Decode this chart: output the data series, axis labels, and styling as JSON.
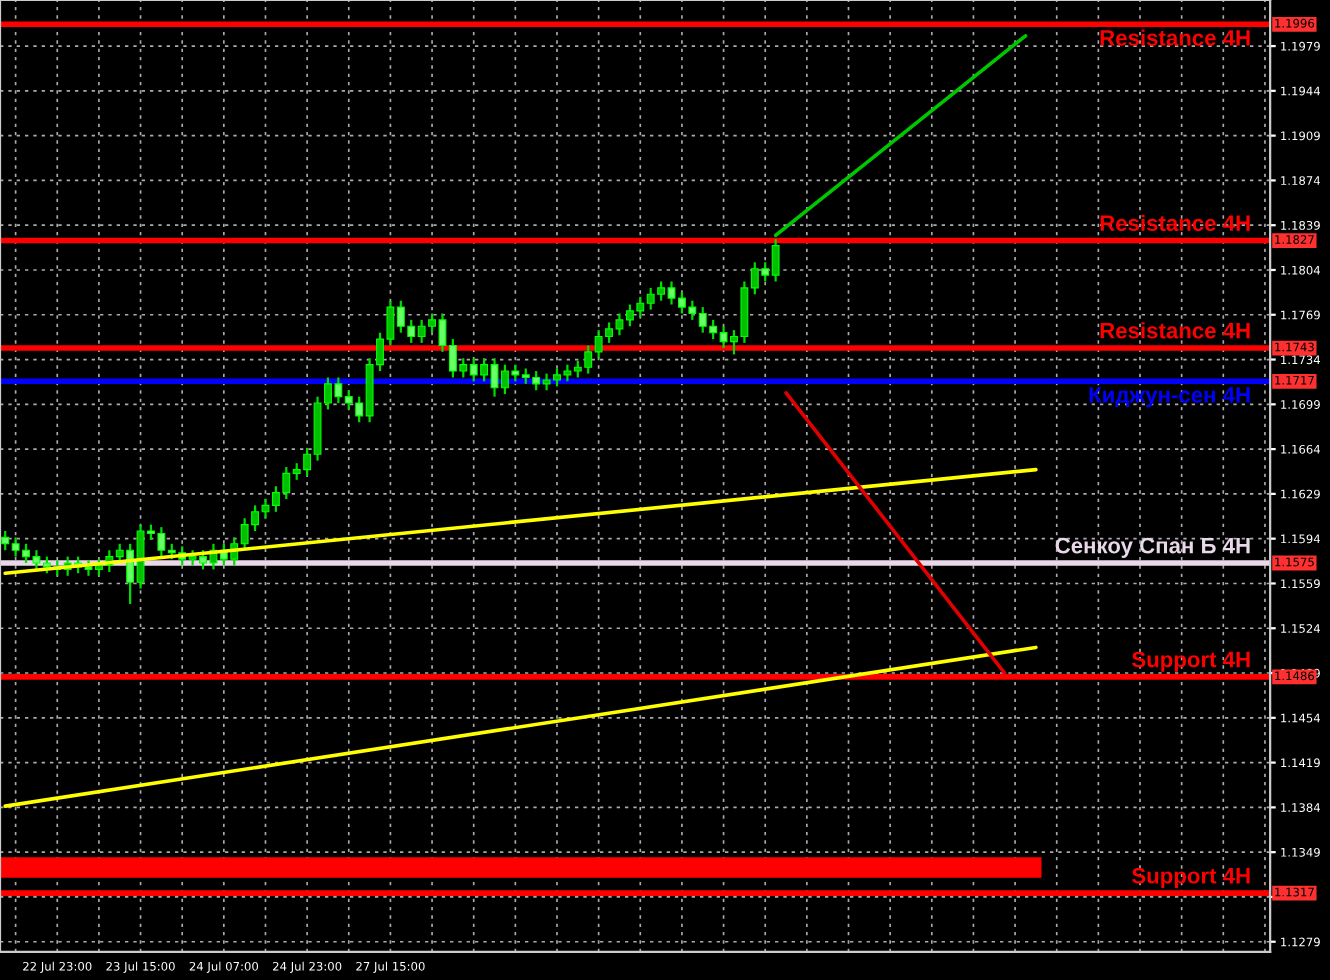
{
  "chart_data": {
    "type": "candlestick",
    "categories": [
      null,
      null,
      null,
      null,
      null,
      "22 Jul 23:00",
      null,
      null,
      null,
      null,
      null,
      null,
      null,
      "23 Jul 15:00",
      null,
      null,
      null,
      null,
      null,
      null,
      null,
      "24 Jul 07:00",
      null,
      null,
      null,
      null,
      null,
      null,
      null,
      "24 Jul 23:00",
      null,
      null,
      null,
      null,
      null,
      null,
      null,
      "27 Jul 15:00",
      null,
      null,
      null,
      null,
      null,
      null,
      null,
      null,
      null,
      null,
      null,
      null,
      null,
      null,
      null,
      null,
      null,
      null,
      null,
      null,
      null,
      null,
      null,
      null,
      null,
      null,
      null,
      null,
      null,
      null,
      null,
      null,
      null,
      null,
      null,
      null,
      null,
      null,
      null,
      null,
      null,
      null,
      null,
      null,
      null,
      null,
      null,
      null,
      null,
      null,
      null,
      null,
      null,
      null,
      null,
      null,
      null,
      null,
      null,
      null,
      null,
      null,
      null,
      null,
      null,
      null,
      null,
      null,
      null,
      null,
      null,
      null,
      null,
      null,
      null,
      null,
      null,
      null,
      null,
      null,
      null,
      null,
      null,
      null
    ],
    "ohlc": [
      [
        1.1595,
        1.16,
        1.1585,
        1.159
      ],
      [
        1.159,
        1.1595,
        1.158,
        1.1585
      ],
      [
        1.1585,
        1.159,
        1.1575,
        1.158
      ],
      [
        1.158,
        1.1585,
        1.157,
        1.1575
      ],
      [
        1.1575,
        1.158,
        1.1567,
        1.1572
      ],
      [
        1.1572,
        1.1577,
        1.1565,
        1.157
      ],
      [
        1.157,
        1.158,
        1.1565,
        1.1575
      ],
      [
        1.1575,
        1.158,
        1.1567,
        1.1572
      ],
      [
        1.1572,
        1.1577,
        1.1565,
        1.157
      ],
      [
        1.157,
        1.1578,
        1.1565,
        1.1573
      ],
      [
        1.1573,
        1.1585,
        1.1568,
        1.158
      ],
      [
        1.158,
        1.159,
        1.1575,
        1.1585
      ],
      [
        1.1585,
        1.159,
        1.1543,
        1.156
      ],
      [
        1.156,
        1.1605,
        1.1555,
        1.16
      ],
      [
        1.16,
        1.1605,
        1.1593,
        1.1598
      ],
      [
        1.1598,
        1.1603,
        1.158,
        1.1585
      ],
      [
        1.1585,
        1.159,
        1.1578,
        1.1583
      ],
      [
        1.1583,
        1.1588,
        1.1573,
        1.1578
      ],
      [
        1.1578,
        1.1585,
        1.1573,
        1.158
      ],
      [
        1.158,
        1.1585,
        1.157,
        1.1575
      ],
      [
        1.1575,
        1.159,
        1.157,
        1.1585
      ],
      [
        1.1585,
        1.159,
        1.1573,
        1.1578
      ],
      [
        1.1578,
        1.1595,
        1.1573,
        1.159
      ],
      [
        1.159,
        1.161,
        1.1585,
        1.1605
      ],
      [
        1.1605,
        1.162,
        1.16,
        1.1615
      ],
      [
        1.1615,
        1.1625,
        1.161,
        1.162
      ],
      [
        1.162,
        1.1635,
        1.1615,
        1.163
      ],
      [
        1.163,
        1.165,
        1.1625,
        1.1645
      ],
      [
        1.1645,
        1.1653,
        1.164,
        1.1648
      ],
      [
        1.1648,
        1.1665,
        1.1643,
        1.166
      ],
      [
        1.166,
        1.1705,
        1.1655,
        1.17
      ],
      [
        1.17,
        1.172,
        1.1695,
        1.1715
      ],
      [
        1.1715,
        1.172,
        1.17,
        1.1705
      ],
      [
        1.1705,
        1.171,
        1.1695,
        1.17
      ],
      [
        1.17,
        1.1705,
        1.1685,
        1.169
      ],
      [
        1.169,
        1.1735,
        1.1685,
        1.173
      ],
      [
        1.173,
        1.1755,
        1.1725,
        1.175
      ],
      [
        1.175,
        1.178,
        1.1745,
        1.1775
      ],
      [
        1.1775,
        1.178,
        1.1755,
        1.176
      ],
      [
        1.176,
        1.1765,
        1.1747,
        1.1752
      ],
      [
        1.1752,
        1.1765,
        1.1747,
        1.176
      ],
      [
        1.176,
        1.177,
        1.1755,
        1.1765
      ],
      [
        1.1765,
        1.177,
        1.174,
        1.1745
      ],
      [
        1.1745,
        1.175,
        1.172,
        1.1725
      ],
      [
        1.1725,
        1.1735,
        1.172,
        1.173
      ],
      [
        1.173,
        1.1735,
        1.1717,
        1.1722
      ],
      [
        1.1722,
        1.1735,
        1.1717,
        1.173
      ],
      [
        1.173,
        1.1735,
        1.1705,
        1.1712
      ],
      [
        1.1712,
        1.173,
        1.1707,
        1.1725
      ],
      [
        1.1725,
        1.173,
        1.1717,
        1.1722
      ],
      [
        1.1722,
        1.1727,
        1.1715,
        1.172
      ],
      [
        1.172,
        1.1725,
        1.171,
        1.1715
      ],
      [
        1.1715,
        1.1723,
        1.171,
        1.1718
      ],
      [
        1.1718,
        1.1727,
        1.1713,
        1.1722
      ],
      [
        1.1722,
        1.173,
        1.1717,
        1.1725
      ],
      [
        1.1725,
        1.1733,
        1.172,
        1.1728
      ],
      [
        1.1728,
        1.1745,
        1.1723,
        1.174
      ],
      [
        1.174,
        1.1757,
        1.1735,
        1.1752
      ],
      [
        1.1752,
        1.1763,
        1.1747,
        1.1758
      ],
      [
        1.1758,
        1.177,
        1.1753,
        1.1765
      ],
      [
        1.1765,
        1.1777,
        1.176,
        1.1772
      ],
      [
        1.1772,
        1.1783,
        1.1767,
        1.1778
      ],
      [
        1.1778,
        1.179,
        1.1773,
        1.1785
      ],
      [
        1.1785,
        1.1795,
        1.178,
        1.179
      ],
      [
        1.179,
        1.1795,
        1.1777,
        1.1782
      ],
      [
        1.1782,
        1.1787,
        1.177,
        1.1775
      ],
      [
        1.1775,
        1.178,
        1.1765,
        1.177
      ],
      [
        1.177,
        1.1775,
        1.1755,
        1.176
      ],
      [
        1.176,
        1.1765,
        1.175,
        1.1755
      ],
      [
        1.1755,
        1.176,
        1.1743,
        1.1748
      ],
      [
        1.1748,
        1.1757,
        1.1738,
        1.1752
      ],
      [
        1.1752,
        1.1795,
        1.1747,
        1.179
      ],
      [
        1.179,
        1.181,
        1.1785,
        1.1805
      ],
      [
        1.1805,
        1.181,
        1.1795,
        1.18
      ],
      [
        1.18,
        1.1828,
        1.1795,
        1.1823
      ],
      null,
      null,
      null,
      null,
      null,
      null,
      null,
      null,
      null,
      null,
      null,
      null,
      null,
      null,
      null,
      null,
      null,
      null,
      null,
      null,
      null,
      null,
      null,
      null,
      null,
      null,
      null,
      null,
      null,
      null,
      null,
      null,
      null,
      null,
      null,
      null,
      null,
      null,
      null,
      null,
      null,
      null,
      null,
      null,
      null,
      null,
      null
    ],
    "series": [
      {
        "type": "line",
        "color": "#ffff00",
        "values": [
          1.1567,
          null,
          null,
          null,
          null,
          null,
          null,
          null,
          null,
          null,
          null,
          null,
          null,
          null,
          null,
          null,
          null,
          null,
          null,
          null,
          null,
          null,
          null,
          null,
          null,
          null,
          null,
          null,
          null,
          null,
          null,
          null,
          null,
          null,
          null,
          null,
          null,
          null,
          null,
          null,
          null,
          null,
          null,
          null,
          null,
          null,
          null,
          null,
          null,
          null,
          null,
          null,
          null,
          null,
          null,
          null,
          null,
          null,
          null,
          null,
          null,
          null,
          null,
          null,
          null,
          null,
          null,
          null,
          null,
          null,
          null,
          null,
          null,
          null,
          null,
          null,
          null,
          null,
          null,
          null,
          null,
          null,
          null,
          null,
          null,
          null,
          null,
          null,
          null,
          null,
          null,
          null,
          null,
          null,
          null,
          null,
          null,
          null,
          null,
          1.1648,
          null,
          null,
          null,
          null,
          null,
          null,
          null,
          null,
          null,
          null,
          null,
          null,
          null,
          null,
          null,
          null,
          null,
          null,
          null,
          null,
          null,
          null
        ]
      },
      {
        "type": "line",
        "color": "#ffff00",
        "values": [
          1.1385,
          null,
          null,
          null,
          null,
          null,
          null,
          null,
          null,
          null,
          null,
          null,
          null,
          null,
          null,
          null,
          null,
          null,
          null,
          null,
          null,
          null,
          null,
          null,
          null,
          null,
          null,
          null,
          null,
          null,
          null,
          null,
          null,
          null,
          null,
          null,
          null,
          null,
          null,
          null,
          null,
          null,
          null,
          null,
          null,
          null,
          null,
          null,
          null,
          null,
          null,
          null,
          null,
          null,
          null,
          null,
          null,
          null,
          null,
          null,
          null,
          null,
          null,
          null,
          null,
          null,
          null,
          null,
          null,
          null,
          null,
          null,
          null,
          null,
          null,
          null,
          null,
          null,
          null,
          null,
          null,
          null,
          null,
          null,
          null,
          null,
          null,
          null,
          null,
          null,
          null,
          null,
          null,
          null,
          null,
          null,
          null,
          null,
          null,
          1.1509,
          null,
          null,
          null,
          null,
          null,
          null,
          null,
          null,
          null,
          null,
          null,
          null,
          null,
          null,
          null,
          null,
          null,
          null,
          null,
          null,
          null,
          null
        ]
      },
      {
        "type": "line",
        "color": "#00c800",
        "values": [
          null,
          null,
          null,
          null,
          null,
          null,
          null,
          null,
          null,
          null,
          null,
          null,
          null,
          null,
          null,
          null,
          null,
          null,
          null,
          null,
          null,
          null,
          null,
          null,
          null,
          null,
          null,
          null,
          null,
          null,
          null,
          null,
          null,
          null,
          null,
          null,
          null,
          null,
          null,
          null,
          null,
          null,
          null,
          null,
          null,
          null,
          null,
          null,
          null,
          null,
          null,
          null,
          null,
          null,
          null,
          null,
          null,
          null,
          null,
          null,
          null,
          null,
          null,
          null,
          null,
          null,
          null,
          null,
          null,
          null,
          null,
          null,
          null,
          null,
          1.1831,
          null,
          null,
          null,
          null,
          null,
          null,
          null,
          null,
          null,
          null,
          null,
          null,
          null,
          null,
          null,
          null,
          null,
          null,
          null,
          null,
          null,
          null,
          null,
          1.1987,
          null,
          null,
          null,
          null,
          null,
          null,
          null,
          null,
          null,
          null,
          null,
          null,
          null,
          null,
          null,
          null,
          null,
          null,
          null,
          null,
          null,
          null,
          null
        ]
      },
      {
        "type": "line",
        "color": "#e00000",
        "values": [
          null,
          null,
          null,
          null,
          null,
          null,
          null,
          null,
          null,
          null,
          null,
          null,
          null,
          null,
          null,
          null,
          null,
          null,
          null,
          null,
          null,
          null,
          null,
          null,
          null,
          null,
          null,
          null,
          null,
          null,
          null,
          null,
          null,
          null,
          null,
          null,
          null,
          null,
          null,
          null,
          null,
          null,
          null,
          null,
          null,
          null,
          null,
          null,
          null,
          null,
          null,
          null,
          null,
          null,
          null,
          null,
          null,
          null,
          null,
          null,
          null,
          null,
          null,
          null,
          null,
          null,
          null,
          null,
          null,
          null,
          null,
          null,
          null,
          null,
          null,
          1.1708,
          null,
          null,
          null,
          null,
          null,
          null,
          null,
          null,
          null,
          null,
          null,
          null,
          null,
          null,
          null,
          null,
          null,
          null,
          null,
          null,
          1.1489,
          null,
          null,
          null,
          null,
          null,
          null,
          null,
          null,
          null,
          null,
          null,
          null,
          null,
          null,
          null,
          null,
          null,
          null,
          null,
          null,
          null,
          null,
          null,
          null,
          null
        ]
      }
    ],
    "ref_lines": [
      {
        "axis": "y",
        "value": 1.1996,
        "label": "Resistance 4H",
        "color": "#ff0000"
      },
      {
        "axis": "y",
        "value": 1.1827,
        "label": "Resistance 4H",
        "color": "#ff0000"
      },
      {
        "axis": "y",
        "value": 1.1743,
        "label": "Resistance 4H",
        "color": "#ff0000"
      },
      {
        "axis": "y",
        "value": 1.1717,
        "label": "Киджун-сен 4H",
        "color": "#0000ff"
      },
      {
        "axis": "y",
        "value": 1.1575,
        "label": "Сенкоу Спан Б 4H",
        "color": "#e8d8e8"
      },
      {
        "axis": "y",
        "value": 1.1486,
        "label": "Support 4H",
        "color": "#ff0000"
      },
      {
        "axis": "y",
        "value": 1.1317,
        "label": "Support 4H",
        "color": "#ff0000"
      }
    ],
    "bands": [
      {
        "axis": "y",
        "from": 1.1329,
        "to": 1.1345,
        "color": "#ff0000"
      }
    ],
    "annotations": [
      {
        "text": "1.1996",
        "y": 1.1996
      },
      {
        "text": "1.1827",
        "y": 1.1827
      },
      {
        "text": "1.1743",
        "y": 1.1743
      },
      {
        "text": "1.1717",
        "y": 1.1717
      },
      {
        "text": "1.1575",
        "y": 1.1575
      },
      {
        "text": "1.1486",
        "y": 1.1486
      },
      {
        "text": "1.1317",
        "y": 1.1317
      }
    ],
    "ylim": [
      1.1271,
      1.2015
    ],
    "yticks": [
      1.1279,
      {
        "value": 1.1314,
        "label": null
      },
      1.1349,
      1.1384,
      1.1419,
      1.1454,
      1.1489,
      1.1524,
      1.1559,
      1.1594,
      1.1629,
      1.1664,
      1.1699,
      1.1734,
      1.1769,
      1.1804,
      1.1839,
      1.1874,
      1.1909,
      1.1944,
      1.1979
    ],
    "grid": true,
    "legend": false
  }
}
